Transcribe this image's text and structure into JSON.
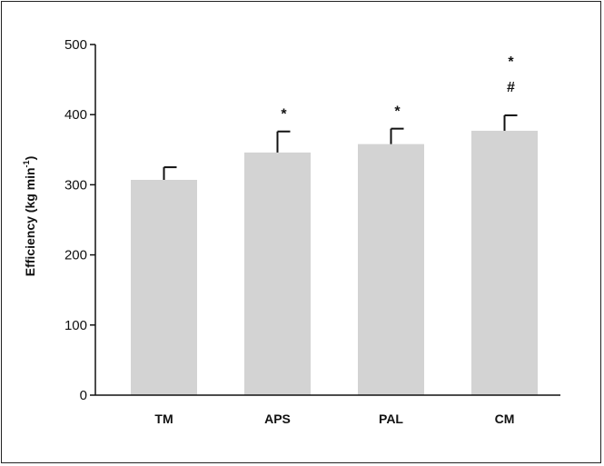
{
  "chart_data": {
    "type": "bar",
    "categories": [
      "TM",
      "APS",
      "PAL",
      "CM"
    ],
    "values": [
      307,
      346,
      358,
      377
    ],
    "errors": [
      18,
      30,
      22,
      22
    ],
    "significance": [
      [],
      [
        "*"
      ],
      [
        "*"
      ],
      [
        "*",
        "#"
      ]
    ],
    "title": "",
    "xlabel": "",
    "ylabel": "Efficiency (kg min",
    "ylabel_superscript": "-1",
    "ylabel_suffix": ")",
    "ylim": [
      0,
      500
    ],
    "yticks": [
      0,
      100,
      200,
      300,
      400,
      500
    ],
    "grid": false,
    "bar_color": "#d3d3d3",
    "axis_color": "#111111"
  }
}
